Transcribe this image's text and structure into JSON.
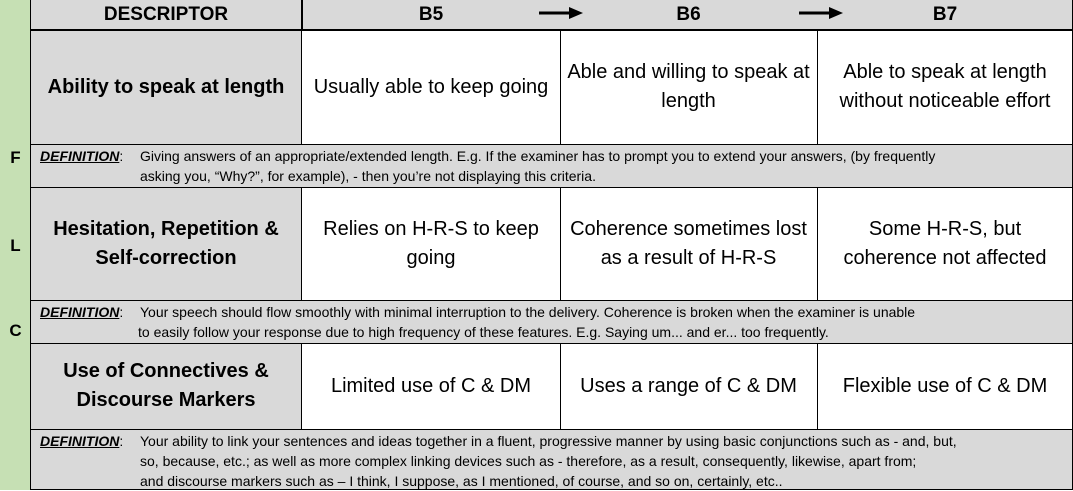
{
  "sidebar": {
    "letters": [
      "F",
      "L",
      "C"
    ]
  },
  "header": {
    "descriptor": "DESCRIPTOR",
    "bands": [
      "B5",
      "B6",
      "B7"
    ]
  },
  "rows": [
    {
      "descriptor": "Ability to speak at length",
      "cells": [
        "Usually able to keep going",
        "Able and willing to speak at length",
        "Able to speak at length without noticeable effort"
      ],
      "definition_label": "DEFINITION",
      "definition_lines": [
        "Giving answers of an appropriate/extended length.  E.g. If the examiner has to prompt you to extend your answers, (by frequently",
        "asking you, “Why?”, for example), - then you’re not displaying this criteria."
      ]
    },
    {
      "descriptor": "Hesitation, Repetition & Self-correction",
      "cells": [
        "Relies on H-R-S to keep going",
        "Coherence sometimes lost as a result of H-R-S",
        "Some H-R-S, but coherence not affected"
      ],
      "definition_label": "DEFINITION",
      "definition_lines": [
        "Your speech should flow smoothly with minimal interruption to the delivery. Coherence is broken when the examiner is unable",
        "to easily follow your response due to high frequency of these features.  E.g. Saying um... and er... too frequently."
      ]
    },
    {
      "descriptor": "Use of Connectives & Discourse Markers",
      "cells": [
        "Limited use of C & DM",
        "Uses a range of C & DM",
        "Flexible use of C & DM"
      ],
      "definition_label": "DEFINITION",
      "definition_lines": [
        "Your ability to link your sentences and ideas together in a fluent, progressive manner by using basic conjunctions such as - and, but,",
        "so, because, etc.; as well as more complex linking devices such as -  therefore, as a result, consequently, likewise, apart from;",
        "and discourse markers such as – I think, I suppose, as I mentioned, of course, and so on, certainly, etc.."
      ]
    }
  ]
}
